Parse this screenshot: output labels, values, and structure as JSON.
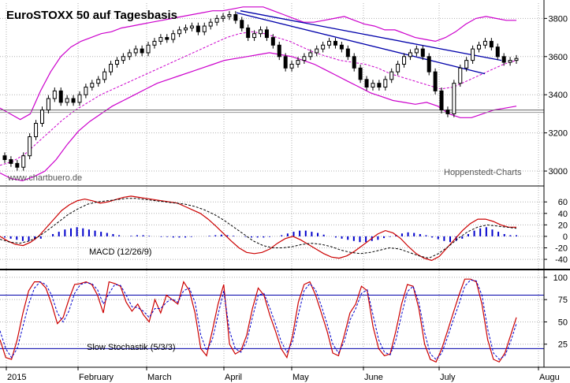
{
  "title": "EuroSTOXX 50 auf Tagesbasis",
  "watermark_left": "www.chartbuero.de",
  "watermark_right": "Hoppenstedt-Charts",
  "x_labels": [
    "2015",
    "February",
    "March",
    "April",
    "May",
    "June",
    "July",
    "Augu"
  ],
  "colors": {
    "candle": "#000000",
    "bollinger": "#cc00cc",
    "trend": "#0000aa",
    "macd": "#cc0000",
    "signal": "#000000",
    "hist": "#0000cc",
    "stoch_k": "#cc0000",
    "stoch_d": "#0000cc",
    "level": "#0000aa",
    "grid": "#b0b0b0"
  },
  "chart_data": [
    {
      "type": "candlestick",
      "name": "price",
      "title": "EuroSTOXX 50 auf Tagesbasis",
      "ylim": [
        2930,
        3880
      ],
      "y_ticks": [
        3000,
        3200,
        3400,
        3600,
        3800
      ],
      "series": [
        {
          "name": "close",
          "values": [
            3060,
            3040,
            3020,
            3080,
            3180,
            3250,
            3320,
            3380,
            3420,
            3360,
            3380,
            3360,
            3400,
            3440,
            3460,
            3480,
            3520,
            3560,
            3580,
            3600,
            3620,
            3640,
            3620,
            3660,
            3680,
            3700,
            3690,
            3720,
            3740,
            3750,
            3760,
            3730,
            3760,
            3780,
            3800,
            3810,
            3820,
            3790,
            3750,
            3700,
            3720,
            3740,
            3700,
            3660,
            3600,
            3540,
            3560,
            3580,
            3600,
            3620,
            3640,
            3660,
            3680,
            3660,
            3640,
            3600,
            3540,
            3480,
            3440,
            3460,
            3440,
            3480,
            3520,
            3560,
            3600,
            3620,
            3640,
            3600,
            3520,
            3420,
            3320,
            3300,
            3460,
            3540,
            3580,
            3640,
            3660,
            3680,
            3650,
            3600,
            3570,
            3580,
            3590
          ]
        },
        {
          "name": "bollinger_upper",
          "values": [
            3330,
            3300,
            3270,
            3300,
            3420,
            3520,
            3600,
            3650,
            3680,
            3700,
            3720,
            3730,
            3750,
            3760,
            3770,
            3780,
            3790,
            3800,
            3810,
            3820,
            3830,
            3840,
            3840,
            3850,
            3860,
            3860,
            3860,
            3840,
            3820,
            3800,
            3780,
            3780,
            3790,
            3800,
            3810,
            3790,
            3770,
            3760,
            3740,
            3740,
            3720,
            3700,
            3690,
            3680,
            3700,
            3730,
            3770,
            3800,
            3810,
            3800,
            3790,
            3790
          ]
        },
        {
          "name": "bollinger_lower",
          "values": [
            2990,
            2960,
            2950,
            2970,
            3000,
            3060,
            3140,
            3210,
            3260,
            3300,
            3340,
            3370,
            3400,
            3430,
            3460,
            3480,
            3500,
            3520,
            3540,
            3560,
            3580,
            3590,
            3600,
            3610,
            3620,
            3610,
            3600,
            3580,
            3560,
            3530,
            3500,
            3470,
            3440,
            3410,
            3390,
            3370,
            3360,
            3350,
            3360,
            3340,
            3300,
            3280,
            3280,
            3300,
            3320,
            3330,
            3340
          ]
        },
        {
          "name": "moving_average",
          "values": [
            3030,
            3050,
            3090,
            3150,
            3210,
            3270,
            3320,
            3360,
            3400,
            3430,
            3460,
            3490,
            3520,
            3550,
            3580,
            3610,
            3640,
            3670,
            3700,
            3720,
            3730,
            3720,
            3700,
            3680,
            3650,
            3620,
            3600,
            3580,
            3570,
            3560,
            3540,
            3510,
            3490,
            3470,
            3450,
            3430,
            3440,
            3470,
            3500,
            3530,
            3560,
            3580
          ]
        },
        {
          "name": "trendline_1",
          "values": [
            3830,
            3510
          ]
        },
        {
          "name": "trendline_2",
          "values": [
            3840,
            3580
          ]
        },
        {
          "name": "support_level",
          "values": [
            3320
          ]
        }
      ]
    },
    {
      "type": "line",
      "name": "macd",
      "label": "MACD (12/26/9)",
      "ylim": [
        -55,
        85
      ],
      "y_ticks": [
        -40,
        -20,
        0,
        20,
        40,
        60
      ],
      "series": [
        {
          "name": "macd",
          "values": [
            0,
            -8,
            -14,
            -16,
            -10,
            0,
            15,
            30,
            45,
            55,
            62,
            65,
            62,
            58,
            60,
            64,
            68,
            70,
            68,
            66,
            64,
            62,
            60,
            58,
            52,
            46,
            40,
            30,
            18,
            5,
            -8,
            -20,
            -28,
            -30,
            -28,
            -22,
            -12,
            -4,
            0,
            -6,
            -14,
            -22,
            -30,
            -36,
            -38,
            -34,
            -26,
            -16,
            -6,
            4,
            10,
            6,
            -4,
            -18,
            -30,
            -38,
            -42,
            -35,
            -20,
            -5,
            10,
            22,
            30,
            30,
            26,
            20,
            16,
            16
          ]
        },
        {
          "name": "signal",
          "values": [
            -5,
            -10,
            -12,
            -8,
            0,
            12,
            25,
            38,
            48,
            56,
            60,
            62,
            64,
            66,
            66,
            64,
            62,
            60,
            58,
            56,
            52,
            46,
            38,
            28,
            16,
            4,
            -8,
            -16,
            -20,
            -20,
            -18,
            -14,
            -12,
            -14,
            -18,
            -24,
            -28,
            -30,
            -28,
            -24,
            -20,
            -22,
            -28,
            -34,
            -38,
            -30,
            -18,
            -4,
            8,
            16,
            20,
            18,
            16,
            14
          ]
        },
        {
          "name": "histogram",
          "values": [
            -2,
            -4,
            -6,
            -8,
            -8,
            -6,
            -4,
            0,
            4,
            8,
            12,
            14,
            16,
            14,
            12,
            10,
            8,
            6,
            4,
            2,
            0,
            1,
            2,
            2,
            1,
            0,
            -1,
            -1,
            -2,
            -2,
            -2,
            -1,
            0,
            0,
            1,
            2,
            3,
            2,
            1,
            0,
            -1,
            -2,
            -2,
            -2,
            -1,
            0,
            2,
            5,
            8,
            10,
            10,
            8,
            6,
            3,
            0,
            -2,
            -4,
            -6,
            -8,
            -10,
            -10,
            -8,
            -6,
            -3,
            -1,
            2,
            5,
            7,
            6,
            4,
            2,
            -2,
            -5,
            -8,
            -10,
            -8,
            -4,
            4,
            10,
            14,
            16,
            12,
            8,
            4,
            2,
            2
          ]
        }
      ]
    },
    {
      "type": "line",
      "name": "stochastic",
      "label": "Slow Stochastik (5/3/3)",
      "ylim": [
        0,
        107
      ],
      "y_ticks": [
        25,
        50,
        75,
        100
      ],
      "levels": [
        20,
        80
      ],
      "series": [
        {
          "name": "%K",
          "values": [
            30,
            10,
            8,
            30,
            60,
            85,
            95,
            95,
            88,
            70,
            48,
            55,
            75,
            92,
            93,
            95,
            92,
            80,
            60,
            95,
            93,
            90,
            72,
            62,
            70,
            58,
            50,
            75,
            60,
            80,
            75,
            70,
            95,
            85,
            60,
            20,
            12,
            40,
            70,
            92,
            25,
            14,
            18,
            35,
            65,
            88,
            80,
            58,
            40,
            20,
            10,
            35,
            72,
            92,
            95,
            80,
            60,
            40,
            15,
            12,
            35,
            60,
            70,
            90,
            85,
            45,
            20,
            12,
            14,
            40,
            70,
            92,
            90,
            65,
            25,
            8,
            5,
            20,
            40,
            60,
            80,
            98,
            98,
            95,
            70,
            30,
            8,
            5,
            15,
            35,
            55
          ]
        },
        {
          "name": "%D",
          "values": [
            40,
            20,
            10,
            20,
            45,
            70,
            88,
            95,
            92,
            80,
            60,
            50,
            62,
            82,
            92,
            94,
            93,
            86,
            70,
            82,
            92,
            91,
            80,
            67,
            66,
            62,
            55,
            65,
            65,
            72,
            76,
            72,
            85,
            88,
            72,
            35,
            18,
            30,
            58,
            85,
            40,
            20,
            16,
            28,
            55,
            80,
            82,
            66,
            48,
            28,
            16,
            28,
            58,
            85,
            93,
            86,
            68,
            48,
            25,
            15,
            28,
            52,
            65,
            82,
            86,
            58,
            30,
            16,
            13,
            30,
            58,
            84,
            90,
            72,
            38,
            14,
            8,
            15,
            33,
            52,
            70,
            90,
            97,
            96,
            80,
            42,
            15,
            8,
            12,
            28,
            48
          ]
        }
      ]
    }
  ]
}
